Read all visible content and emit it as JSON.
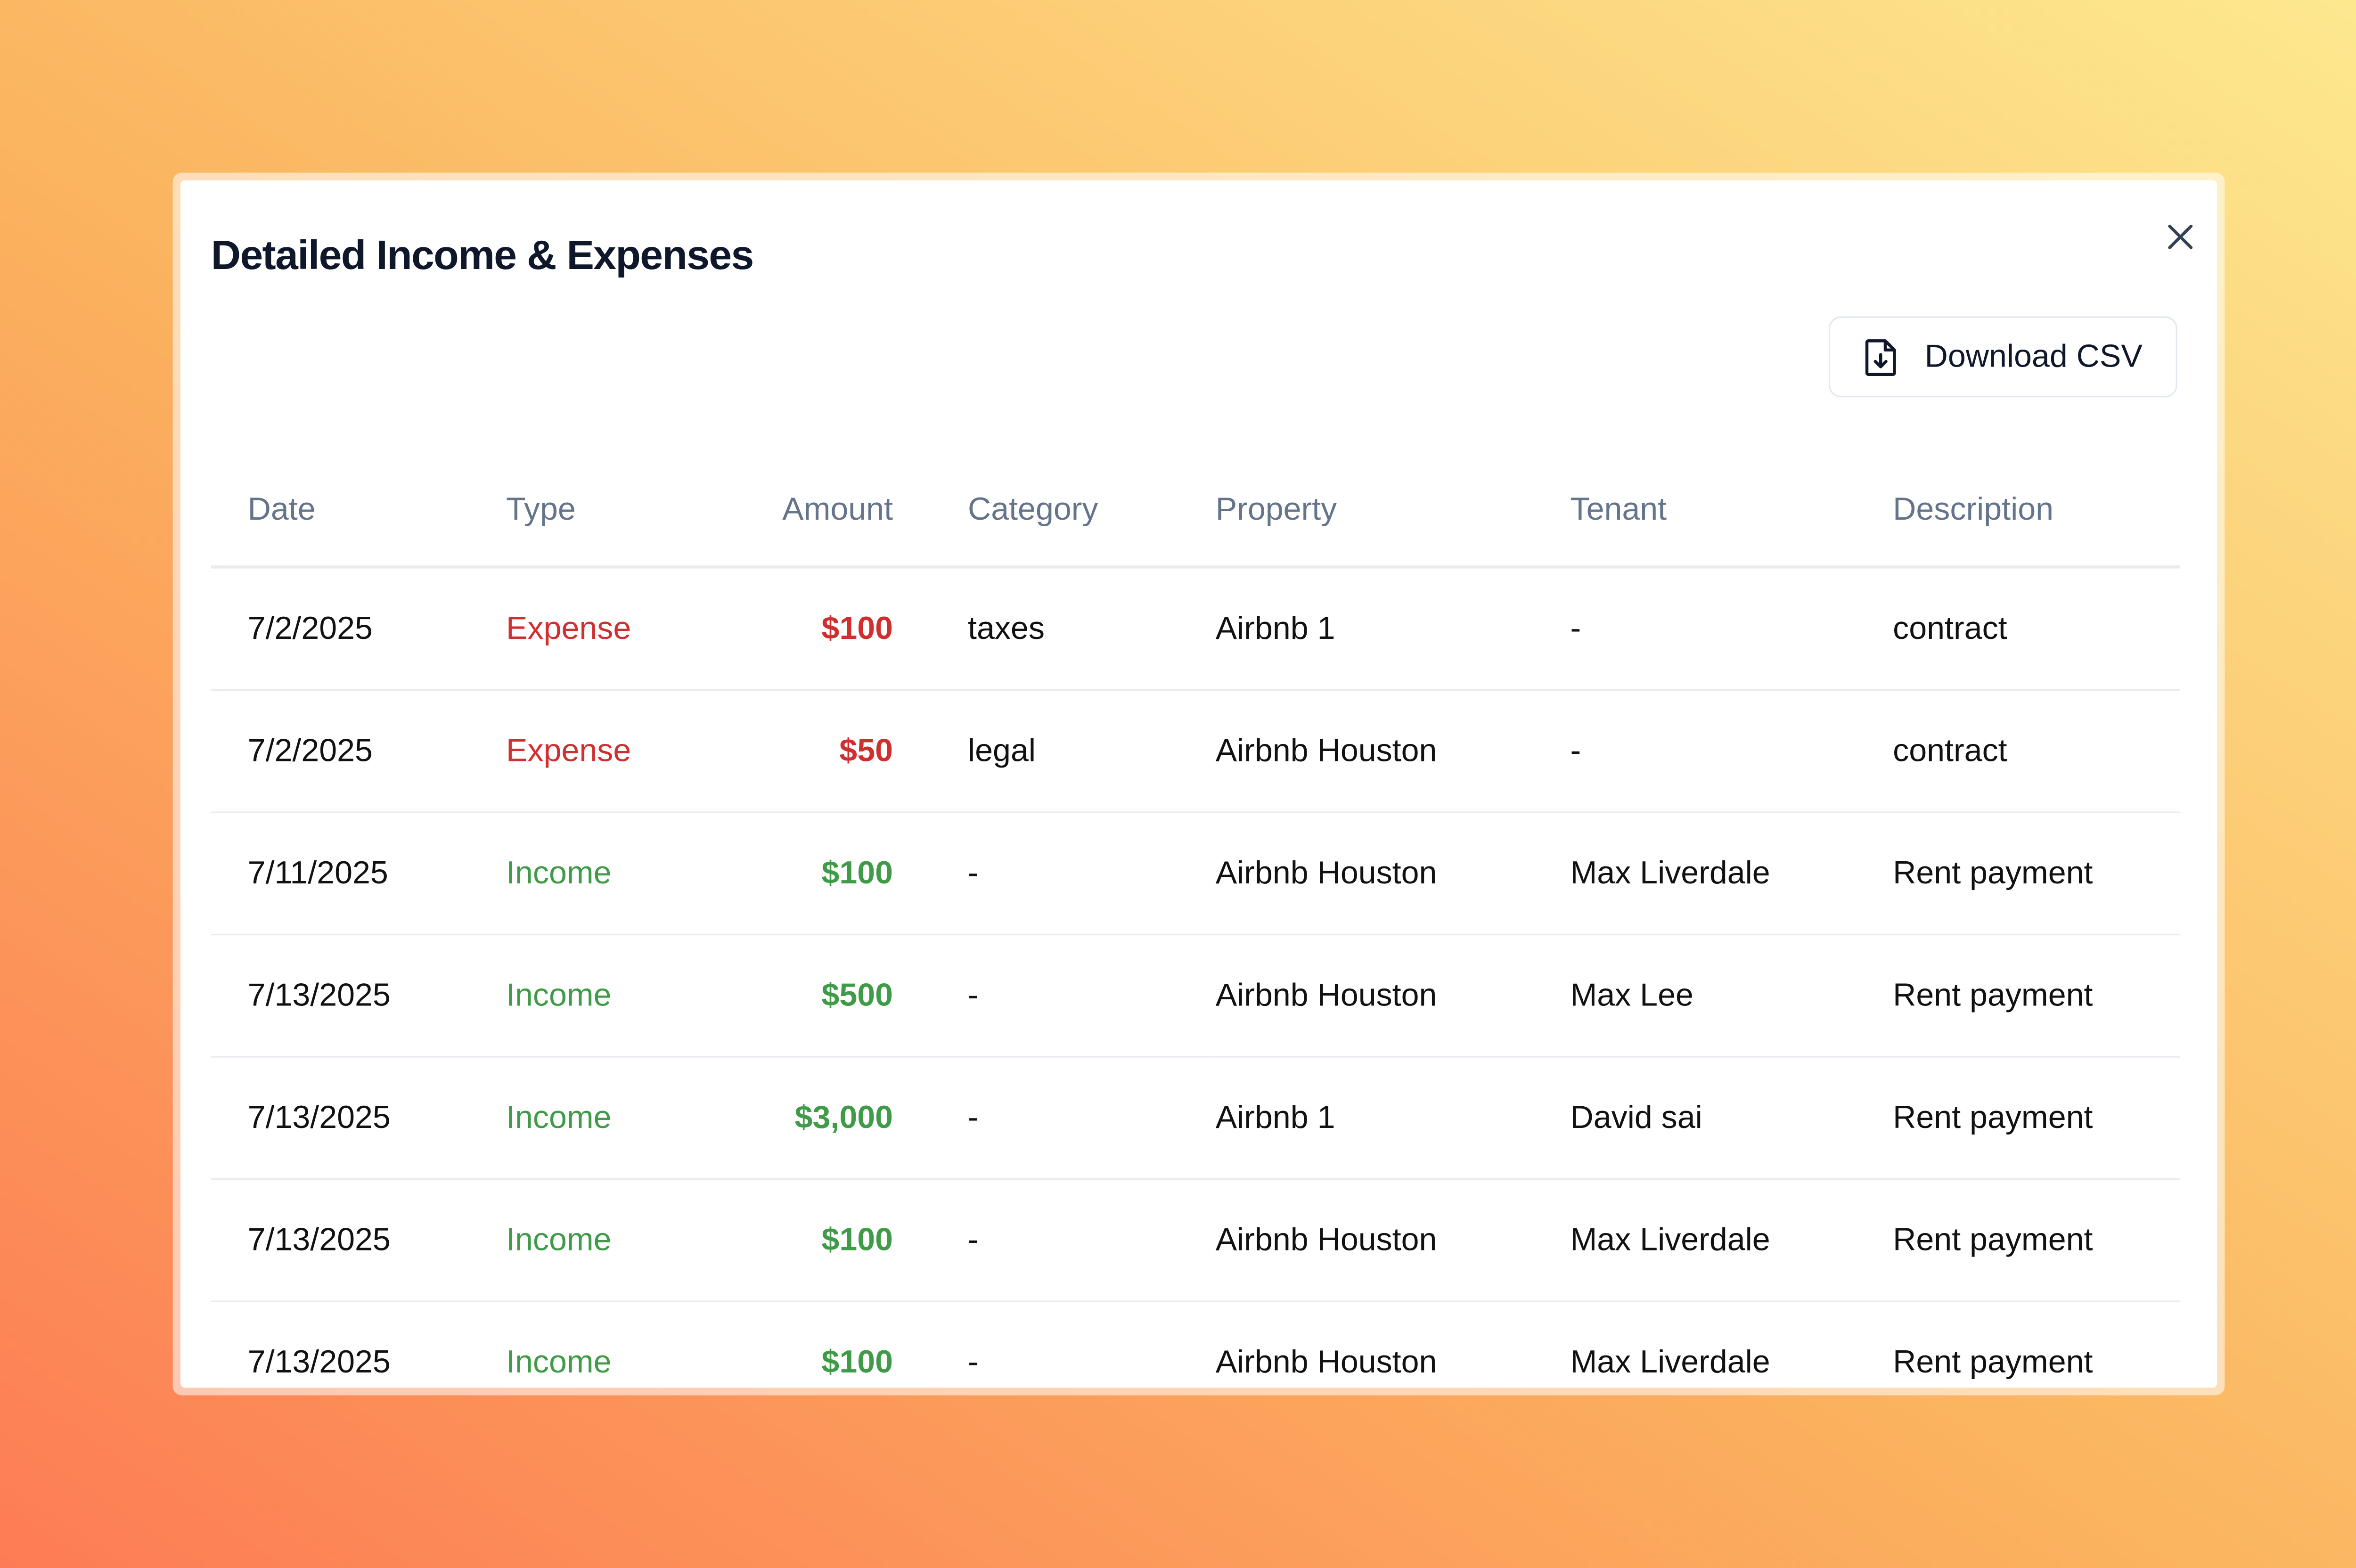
{
  "header": {
    "title": "Detailed Income & Expenses",
    "download_button": "Download CSV"
  },
  "table": {
    "columns": [
      "Date",
      "Type",
      "Amount",
      "Category",
      "Property",
      "Tenant",
      "Description"
    ],
    "rows": [
      {
        "date": "7/2/2025",
        "type": "Expense",
        "amount": "$100",
        "category": "taxes",
        "property": "Airbnb 1",
        "tenant": "-",
        "description": "contract",
        "color": "#d12f2f"
      },
      {
        "date": "7/2/2025",
        "type": "Expense",
        "amount": "$50",
        "category": "legal",
        "property": "Airbnb Houston",
        "tenant": "-",
        "description": "contract",
        "color": "#d12f2f"
      },
      {
        "date": "7/11/2025",
        "type": "Income",
        "amount": "$100",
        "category": "-",
        "property": "Airbnb Houston",
        "tenant": "Max Liverdale",
        "description": "Rent payment",
        "color": "#3f9b47"
      },
      {
        "date": "7/13/2025",
        "type": "Income",
        "amount": "$500",
        "category": "-",
        "property": "Airbnb Houston",
        "tenant": "Max Lee",
        "description": "Rent payment",
        "color": "#3f9b47"
      },
      {
        "date": "7/13/2025",
        "type": "Income",
        "amount": "$3,000",
        "category": "-",
        "property": "Airbnb 1",
        "tenant": "David sai",
        "description": "Rent payment",
        "color": "#3f9b47"
      },
      {
        "date": "7/13/2025",
        "type": "Income",
        "amount": "$100",
        "category": "-",
        "property": "Airbnb Houston",
        "tenant": "Max Liverdale",
        "description": "Rent payment",
        "color": "#3f9b47"
      },
      {
        "date": "7/13/2025",
        "type": "Income",
        "amount": "$100",
        "category": "-",
        "property": "Airbnb Houston",
        "tenant": "Max Liverdale",
        "description": "Rent payment",
        "color": "#3f9b47"
      }
    ]
  }
}
